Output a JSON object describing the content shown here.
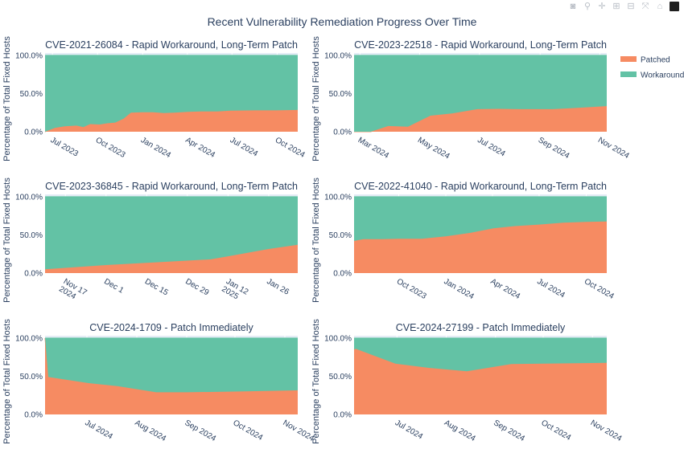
{
  "title": "Recent Vulnerability Remediation Progress Over Time",
  "modebar": [
    {
      "icon": "camera-icon",
      "glyph": "◙"
    },
    {
      "icon": "zoom-icon",
      "glyph": "⚲"
    },
    {
      "icon": "pan-icon",
      "glyph": "✛"
    },
    {
      "icon": "zoom-in-icon",
      "glyph": "⊞"
    },
    {
      "icon": "zoom-out-icon",
      "glyph": "⊟"
    },
    {
      "icon": "autoscale-icon",
      "glyph": "⤧"
    },
    {
      "icon": "home-icon",
      "glyph": "⌂"
    }
  ],
  "legend": {
    "position": "top-right",
    "items": [
      {
        "name": "Patched",
        "color": "#F68B62"
      },
      {
        "name": "Workaround",
        "color": "#63C2A5"
      }
    ]
  },
  "colors": {
    "patched": "#F68B62",
    "workaround": "#63C2A5",
    "plot_bg": "#E5ECF6",
    "text": "#2a3f5f"
  },
  "chart_data": [
    {
      "type": "area",
      "stacked": true,
      "title": "CVE-2021-26084 - Rapid Workaround, Long-Term Patch",
      "ylabel": "Percentage of Total Fixed Hosts",
      "ylim": [
        0,
        103
      ],
      "yticks": [
        "0.0%",
        "50.0%",
        "100.0%"
      ],
      "ytick_values": [
        0,
        50,
        100
      ],
      "xrange": [
        "2023-06-16",
        "2024-11-12"
      ],
      "xticks": [
        {
          "date": "2023-07-01",
          "label": "Jul 2023"
        },
        {
          "date": "2023-10-01",
          "label": "Oct 2023"
        },
        {
          "date": "2024-01-01",
          "label": "Jan 2024"
        },
        {
          "date": "2024-04-01",
          "label": "Apr 2024"
        },
        {
          "date": "2024-07-01",
          "label": "Jul 2024"
        },
        {
          "date": "2024-10-01",
          "label": "Oct 2024"
        }
      ],
      "x": [
        "2023-06-16",
        "2023-07-06",
        "2023-07-26",
        "2023-08-19",
        "2023-09-02",
        "2023-09-16",
        "2023-10-05",
        "2023-10-21",
        "2023-11-06",
        "2023-11-23",
        "2023-12-08",
        "2023-12-31",
        "2024-01-22",
        "2024-02-13",
        "2024-03-06",
        "2024-04-02",
        "2024-04-29",
        "2024-06-01",
        "2024-06-28",
        "2024-08-17",
        "2024-09-29",
        "2024-11-12"
      ],
      "series": [
        {
          "name": "Patched",
          "values": [
            0,
            5,
            7,
            8,
            6,
            10,
            9.5,
            11,
            12,
            17,
            25,
            25.5,
            25.5,
            24.5,
            25,
            26,
            26.5,
            26.5,
            27.5,
            28,
            28,
            28.5
          ]
        },
        {
          "name": "Workaround",
          "values": [
            100,
            95,
            93,
            92,
            94,
            90,
            90.5,
            89,
            88,
            83,
            75,
            74.5,
            74.5,
            75.5,
            75,
            74,
            73.5,
            73.5,
            72.5,
            72,
            72,
            71.5
          ]
        }
      ]
    },
    {
      "type": "area",
      "stacked": true,
      "title": "CVE-2023-22518 - Rapid Workaround, Long-Term Patch",
      "ylabel": "Percentage of Total Fixed Hosts",
      "ylim": [
        0,
        103
      ],
      "yticks": [
        "0.0%",
        "50.0%",
        "100.0%"
      ],
      "ytick_values": [
        0,
        50,
        100
      ],
      "xrange": [
        "2024-02-24",
        "2024-11-08"
      ],
      "xticks": [
        {
          "date": "2024-03-01",
          "label": "Mar 2024"
        },
        {
          "date": "2024-05-01",
          "label": "May 2024"
        },
        {
          "date": "2024-07-01",
          "label": "Jul 2024"
        },
        {
          "date": "2024-09-01",
          "label": "Sep 2024"
        },
        {
          "date": "2024-11-01",
          "label": "Nov 2024"
        }
      ],
      "x": [
        "2024-02-24",
        "2024-03-12",
        "2024-03-30",
        "2024-04-19",
        "2024-05-12",
        "2024-06-03",
        "2024-06-29",
        "2024-07-21",
        "2024-08-12",
        "2024-09-14",
        "2024-10-06",
        "2024-11-08"
      ],
      "series": [
        {
          "name": "Patched",
          "values": [
            0,
            0,
            7.5,
            6.5,
            21,
            24,
            29.5,
            30,
            29.5,
            29.5,
            31,
            33.5
          ]
        },
        {
          "name": "Workaround",
          "values": [
            100,
            100,
            92.5,
            93.5,
            79,
            76,
            70.5,
            70,
            70.5,
            70.5,
            69,
            66.5
          ]
        }
      ]
    },
    {
      "type": "area",
      "stacked": true,
      "title": "CVE-2023-36845 - Rapid Workaround, Long-Term Patch",
      "ylabel": "Percentage of Total Fixed Hosts",
      "ylim": [
        0,
        103
      ],
      "yticks": [
        "0.0%",
        "50.0%",
        "100.0%"
      ],
      "ytick_values": [
        0,
        50,
        100
      ],
      "xrange": [
        "2024-11-10",
        "2025-02-05"
      ],
      "xticks": [
        {
          "date": "2024-11-17",
          "label": "Nov 17\n2024"
        },
        {
          "date": "2024-12-01",
          "label": "Dec 1"
        },
        {
          "date": "2024-12-15",
          "label": "Dec 15"
        },
        {
          "date": "2024-12-29",
          "label": "Dec 29"
        },
        {
          "date": "2025-01-12",
          "label": "Jan 12\n2025"
        },
        {
          "date": "2025-01-26",
          "label": "Jan 26"
        }
      ],
      "x": [
        "2024-11-10",
        "2024-12-01",
        "2024-12-20",
        "2025-01-06",
        "2025-01-12",
        "2025-01-26",
        "2025-02-05"
      ],
      "series": [
        {
          "name": "Patched",
          "values": [
            5,
            10.5,
            14.5,
            18,
            22,
            31.5,
            37
          ]
        },
        {
          "name": "Workaround",
          "values": [
            95,
            89.5,
            85.5,
            82,
            78,
            68.5,
            63
          ]
        }
      ]
    },
    {
      "type": "area",
      "stacked": true,
      "title": "CVE-2022-41040 - Rapid Workaround, Long-Term Patch",
      "ylabel": "Percentage of Total Fixed Hosts",
      "ylim": [
        0,
        103
      ],
      "yticks": [
        "0.0%",
        "50.0%",
        "100.0%"
      ],
      "ytick_values": [
        0,
        50,
        100
      ],
      "xrange": [
        "2023-07-06",
        "2024-11-10"
      ],
      "xticks": [
        {
          "date": "2023-10-01",
          "label": "Oct 2023"
        },
        {
          "date": "2024-01-01",
          "label": "Jan 2024"
        },
        {
          "date": "2024-04-01",
          "label": "Apr 2024"
        },
        {
          "date": "2024-07-01",
          "label": "Jul 2024"
        },
        {
          "date": "2024-10-01",
          "label": "Oct 2024"
        }
      ],
      "x": [
        "2023-07-06",
        "2023-07-24",
        "2023-08-28",
        "2023-10-01",
        "2023-11-15",
        "2024-01-01",
        "2024-02-17",
        "2024-04-03",
        "2024-05-15",
        "2024-07-01",
        "2024-08-17",
        "2024-10-01",
        "2024-11-10"
      ],
      "series": [
        {
          "name": "Patched",
          "values": [
            42,
            44.5,
            44.5,
            45,
            45,
            48,
            52.5,
            58.5,
            61.5,
            63.5,
            66,
            67,
            67.5
          ]
        },
        {
          "name": "Workaround",
          "values": [
            58,
            55.5,
            55.5,
            55,
            55,
            52,
            47.5,
            41.5,
            38.5,
            36.5,
            34,
            33,
            32.5
          ]
        }
      ]
    },
    {
      "type": "area",
      "stacked": true,
      "title": "CVE-2024-1709 - Patch Immediately",
      "ylabel": "Percentage of Total Fixed Hosts",
      "ylim": [
        0,
        103
      ],
      "yticks": [
        "0.0%",
        "50.0%",
        "100.0%"
      ],
      "ytick_values": [
        0,
        50,
        100
      ],
      "xrange": [
        "2024-06-05",
        "2024-11-09"
      ],
      "xticks": [
        {
          "date": "2024-07-01",
          "label": "Jul 2024"
        },
        {
          "date": "2024-08-01",
          "label": "Aug 2024"
        },
        {
          "date": "2024-09-01",
          "label": "Sep 2024"
        },
        {
          "date": "2024-10-01",
          "label": "Oct 2024"
        },
        {
          "date": "2024-11-01",
          "label": "Nov 2024"
        }
      ],
      "x": [
        "2024-06-05",
        "2024-06-07",
        "2024-07-02",
        "2024-07-20",
        "2024-08-13",
        "2024-09-01",
        "2024-10-01",
        "2024-11-09"
      ],
      "series": [
        {
          "name": "Patched",
          "values": [
            100,
            49,
            41,
            37,
            29,
            29,
            30,
            31.5
          ]
        },
        {
          "name": "Workaround",
          "values": [
            0,
            51,
            59,
            63,
            71,
            71,
            70,
            68.5
          ]
        }
      ]
    },
    {
      "type": "area",
      "stacked": true,
      "title": "CVE-2024-27199 - Patch Immediately",
      "ylabel": "Percentage of Total Fixed Hosts",
      "ylim": [
        0,
        103
      ],
      "yticks": [
        "0.0%",
        "50.0%",
        "100.0%"
      ],
      "ytick_values": [
        0,
        50,
        100
      ],
      "xrange": [
        "2024-06-04",
        "2024-11-10"
      ],
      "xticks": [
        {
          "date": "2024-07-01",
          "label": "Jul 2024"
        },
        {
          "date": "2024-08-01",
          "label": "Aug 2024"
        },
        {
          "date": "2024-09-01",
          "label": "Sep 2024"
        },
        {
          "date": "2024-10-01",
          "label": "Oct 2024"
        },
        {
          "date": "2024-11-01",
          "label": "Nov 2024"
        }
      ],
      "x": [
        "2024-06-04",
        "2024-06-05",
        "2024-06-30",
        "2024-07-21",
        "2024-08-14",
        "2024-09-11",
        "2024-11-10"
      ],
      "series": [
        {
          "name": "Patched",
          "values": [
            85,
            86,
            66.5,
            61,
            56.5,
            66,
            67.5
          ]
        },
        {
          "name": "Workaround",
          "values": [
            15,
            14,
            33.5,
            39,
            43.5,
            34,
            32.5
          ]
        }
      ]
    }
  ]
}
